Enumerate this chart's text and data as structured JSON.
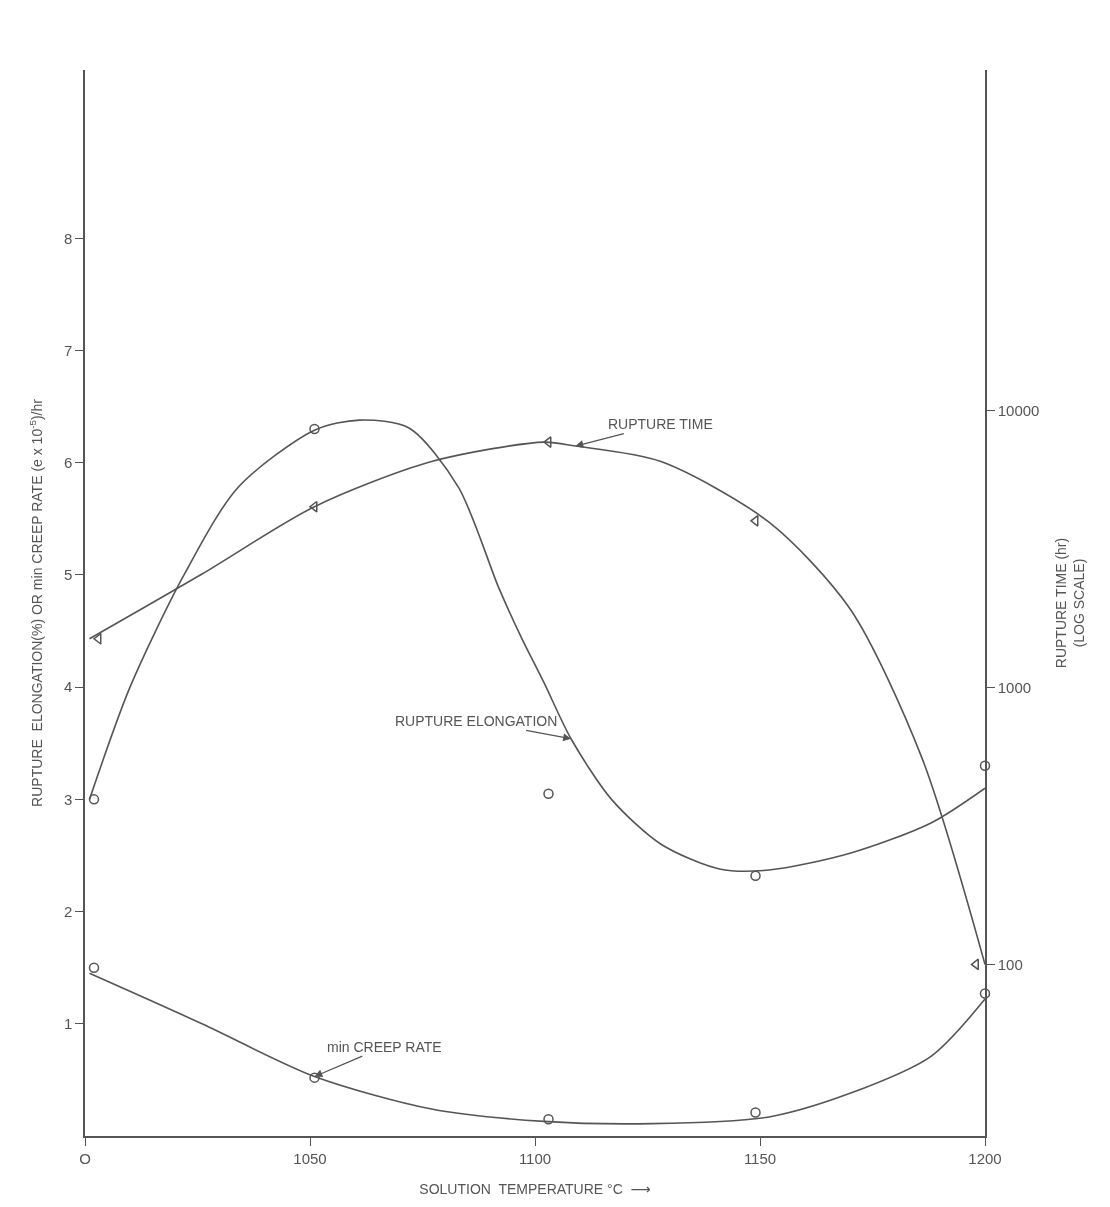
{
  "chart_data": {
    "type": "line",
    "xlabel": "SOLUTION  TEMPERATURE °C  ⟶",
    "ylabel": "RUPTURE  ELONGATION(%) OR min CREEP RATE (e x 10$^{-5}$)/hr",
    "y2label": "RUPTURE TIME (hr)\n(LOG SCALE)",
    "log": "y2",
    "grid": false,
    "legend": false,
    "xlim": [
      1000,
      1200
    ],
    "xticks": [
      {
        "value": 1000,
        "label": "O"
      },
      1050,
      1100,
      1150,
      1200
    ],
    "ylim": [
      0,
      9.5
    ],
    "yticks": [
      1,
      2,
      3,
      4,
      5,
      6,
      7,
      8
    ],
    "y2lim": [
      24,
      170000
    ],
    "y2ticks": [
      100,
      1000,
      10000
    ],
    "series": [
      {
        "type": "scatter",
        "marker": "circle",
        "color": "#555555",
        "x": [
          1002,
          1051,
          1103,
          1149,
          1200
        ],
        "values": [
          3.0,
          6.3,
          3.05,
          2.32,
          3.3
        ]
      },
      {
        "type": "scatter",
        "marker": "triangle",
        "color": "#555555",
        "axis": "y2",
        "x": [
          1003,
          1051,
          1103,
          1149,
          1198
        ],
        "values": [
          1500,
          4500,
          7700,
          4000,
          100
        ]
      },
      {
        "type": "scatter",
        "marker": "circle",
        "color": "#555555",
        "x": [
          1002,
          1051,
          1103,
          1149,
          1200
        ],
        "values": [
          1.5,
          0.52,
          0.15,
          0.21,
          1.27
        ]
      },
      {
        "marker": "none",
        "name": "RUPTURE ELONGATION",
        "color": "#555555",
        "x": [
          1001,
          1010,
          1022,
          1034,
          1051,
          1061,
          1072,
          1083,
          1092,
          1097,
          1102,
          1108,
          1117,
          1128,
          1141,
          1152,
          1170,
          1188,
          1200
        ],
        "values": [
          3.0,
          4.0,
          5.0,
          5.78,
          6.29,
          6.38,
          6.31,
          5.78,
          4.88,
          4.44,
          4.04,
          3.54,
          3.0,
          2.6,
          2.38,
          2.37,
          2.52,
          2.79,
          3.1
        ]
      },
      {
        "marker": "none",
        "name": "RUPTURE TIME",
        "color": "#555555",
        "axis": "y2",
        "x": [
          1001,
          1026,
          1051,
          1077,
          1102,
          1109,
          1128,
          1152,
          1170,
          1186,
          1200
        ],
        "values": [
          1500,
          2570,
          4500,
          6550,
          7700,
          7450,
          6550,
          3955,
          1925,
          556,
          100
        ]
      },
      {
        "marker": "none",
        "name": "min CREEP RATE",
        "color": "#555555",
        "x": [
          1001,
          1026,
          1051,
          1077,
          1102,
          1126,
          1152,
          1170,
          1188,
          1200
        ],
        "values": [
          1.45,
          1.0,
          0.53,
          0.24,
          0.13,
          0.11,
          0.17,
          0.38,
          0.71,
          1.22
        ]
      }
    ]
  }
}
